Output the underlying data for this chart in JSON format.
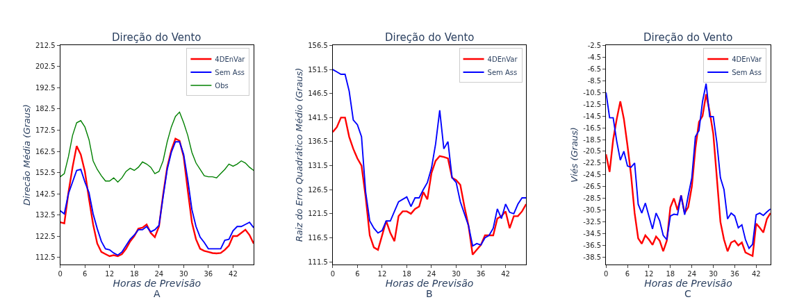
{
  "chart_data": [
    {
      "type": "line",
      "title": "Direção do Vento",
      "xlabel": "Horas de Previsão",
      "ylabel": "Direcão Média (Graus)",
      "annotations": [
        "A"
      ],
      "legend": "top right",
      "x": [
        0,
        1,
        2,
        3,
        4,
        5,
        6,
        7,
        8,
        9,
        10,
        11,
        12,
        13,
        14,
        15,
        16,
        17,
        18,
        19,
        20,
        21,
        22,
        23,
        24,
        25,
        26,
        27,
        28,
        29,
        30,
        31,
        32,
        33,
        34,
        35,
        36,
        37,
        38,
        39,
        40,
        41,
        42,
        43,
        44,
        45,
        46,
        47
      ],
      "xlim": [
        0,
        47
      ],
      "xticks": [
        0,
        6,
        12,
        18,
        24,
        30,
        36,
        42
      ],
      "ylim": [
        109.2,
        212.5
      ],
      "yticks": [
        112.5,
        122.5,
        132.5,
        142.5,
        152.5,
        162.5,
        172.5,
        182.5,
        192.5,
        202.5,
        212.5
      ],
      "series": [
        {
          "name": "4DEnVar",
          "color": "#ff0000",
          "values": [
            129,
            128.5,
            143,
            155,
            165,
            161,
            153,
            140,
            128,
            119,
            115,
            114,
            113,
            113.5,
            113,
            114,
            116.5,
            120,
            122.5,
            126,
            126.5,
            128,
            124,
            122,
            127,
            142,
            155,
            163,
            168.5,
            167.5,
            160,
            144,
            129,
            121,
            116.5,
            115.5,
            115,
            114.5,
            114.3,
            114.5,
            116,
            118,
            122.5,
            122.5,
            124,
            125.5,
            123,
            119
          ]
        },
        {
          "name": "Sem Ass",
          "color": "#0000ff",
          "values": [
            134.5,
            133,
            142.5,
            148,
            153.5,
            154,
            148,
            143,
            133,
            126,
            120,
            116.5,
            116,
            114.5,
            113.5,
            115,
            118,
            121,
            123,
            125.5,
            125.5,
            127,
            124.5,
            125.5,
            127.5,
            141,
            154,
            162,
            167,
            167,
            161,
            149,
            135,
            127,
            122,
            119.5,
            116.5,
            116.5,
            116.5,
            116.5,
            120.5,
            121,
            125,
            127,
            127,
            128,
            129,
            126.5
          ]
        },
        {
          "name": "Obs",
          "color": "#008000",
          "values": [
            150.5,
            152,
            160,
            170,
            176,
            177,
            174,
            168,
            158,
            154,
            151,
            148.5,
            148.5,
            150,
            148,
            150,
            153,
            154.5,
            153.5,
            155,
            157.5,
            156.5,
            155,
            152,
            153,
            158,
            167,
            174,
            179,
            181,
            176,
            170,
            162,
            157,
            154,
            151,
            150.5,
            150.5,
            150,
            152,
            154,
            156.5,
            155.5,
            156.5,
            158,
            157,
            155,
            153.5
          ]
        }
      ]
    },
    {
      "type": "line",
      "title": "Direção do Vento",
      "xlabel": "Horas de Previsão",
      "ylabel": "Raiz do Erro Quadrático Médio (Graus)",
      "annotations": [
        "B"
      ],
      "legend": "top right",
      "x": [
        0,
        1,
        2,
        3,
        4,
        5,
        6,
        7,
        8,
        9,
        10,
        11,
        12,
        13,
        14,
        15,
        16,
        17,
        18,
        19,
        20,
        21,
        22,
        23,
        24,
        25,
        26,
        27,
        28,
        29,
        30,
        31,
        32,
        33,
        34,
        35,
        36,
        37,
        38,
        39,
        40,
        41,
        42,
        43,
        44,
        45,
        46,
        47
      ],
      "xlim": [
        0,
        47
      ],
      "xticks": [
        0,
        6,
        12,
        18,
        24,
        30,
        36,
        42
      ],
      "ylim": [
        111,
        156.5
      ],
      "yticks": [
        111.5,
        116.5,
        121.5,
        126.5,
        131.5,
        136.5,
        141.5,
        146.5,
        151.5,
        156.5
      ],
      "series": [
        {
          "name": "4DEnVar",
          "color": "#ff0000",
          "values": [
            138.5,
            139.5,
            141.5,
            141.5,
            137.5,
            135,
            133,
            131.5,
            125,
            117,
            114.5,
            114,
            117,
            120,
            117.5,
            115.8,
            121,
            122,
            122,
            121.5,
            122.5,
            123,
            126,
            124.5,
            130,
            132.5,
            133.5,
            133.3,
            133,
            129,
            128.5,
            127.5,
            123,
            119,
            113,
            114,
            115,
            117,
            117,
            117,
            120.5,
            121,
            122,
            118.5,
            121,
            121,
            122,
            123.5
          ]
        },
        {
          "name": "Sem Ass",
          "color": "#0000ff",
          "values": [
            151.5,
            151,
            150.5,
            150.5,
            147,
            141,
            140,
            137.5,
            126,
            120,
            118.5,
            117.5,
            118,
            120,
            120,
            122,
            124,
            124.5,
            125,
            123,
            124.8,
            124.8,
            126.5,
            128,
            131,
            136,
            143,
            135,
            136.5,
            129,
            128,
            124,
            121.5,
            119,
            114.8,
            115.3,
            115,
            116.5,
            117,
            118.5,
            122.5,
            120.5,
            123.5,
            121.8,
            121.5,
            123.5,
            124.8,
            124.8
          ]
        }
      ]
    },
    {
      "type": "line",
      "title": "Direção do Vento",
      "xlabel": "Horas de Previsão",
      "ylabel": "Viés (Graus)",
      "annotations": [
        "C"
      ],
      "legend": "top right",
      "x": [
        0,
        1,
        2,
        3,
        4,
        5,
        6,
        7,
        8,
        9,
        10,
        11,
        12,
        13,
        14,
        15,
        16,
        17,
        18,
        19,
        20,
        21,
        22,
        23,
        24,
        25,
        26,
        27,
        28,
        29,
        30,
        31,
        32,
        33,
        34,
        35,
        36,
        37,
        38,
        39,
        40,
        41,
        42,
        43,
        44,
        45,
        46
      ],
      "xlim": [
        0,
        46
      ],
      "xticks": [
        0,
        6,
        12,
        18,
        24,
        30,
        36,
        42
      ],
      "ylim": [
        -39.7,
        -2.5
      ],
      "yticks": [
        -38.5,
        -36.5,
        -34.5,
        -32.5,
        -30.5,
        -28.5,
        -26.5,
        -24.5,
        -22.5,
        -20.5,
        -18.5,
        -16.5,
        -14.5,
        -12.5,
        -10.5,
        -8.5,
        -6.5,
        -4.5,
        -2.5
      ],
      "series": [
        {
          "name": "4DEnVar",
          "color": "#ff0000",
          "values": [
            -21,
            -24,
            -18.5,
            -15,
            -12,
            -15,
            -19.5,
            -24.5,
            -31,
            -35.3,
            -36.2,
            -34.8,
            -35.5,
            -36.4,
            -35,
            -35.7,
            -37.5,
            -35.7,
            -30,
            -28.5,
            -30.5,
            -28,
            -31,
            -30,
            -26.5,
            -20,
            -15.5,
            -14.5,
            -10.8,
            -13.8,
            -17.5,
            -25,
            -32.5,
            -35.5,
            -37.5,
            -36,
            -35.7,
            -36.5,
            -36,
            -37.7,
            -38,
            -38.3,
            -32.8,
            -33.5,
            -34.3,
            -32,
            -31
          ]
        },
        {
          "name": "Sem Ass",
          "color": "#0000ff",
          "values": [
            -10.5,
            -14.8,
            -14.8,
            -18.8,
            -22,
            -20.5,
            -23,
            -23.2,
            -22.5,
            -29.5,
            -31,
            -29.3,
            -31.5,
            -33.7,
            -31,
            -32.3,
            -34.8,
            -35.5,
            -31.5,
            -31.2,
            -31.3,
            -28,
            -31.3,
            -28,
            -25,
            -18,
            -17,
            -12,
            -9,
            -14.6,
            -14.6,
            -19,
            -25,
            -27,
            -32,
            -31,
            -31.5,
            -33.5,
            -33,
            -35.5,
            -37,
            -36.3,
            -31.3,
            -31,
            -31.4,
            -30.8,
            -30.3
          ]
        }
      ]
    }
  ]
}
